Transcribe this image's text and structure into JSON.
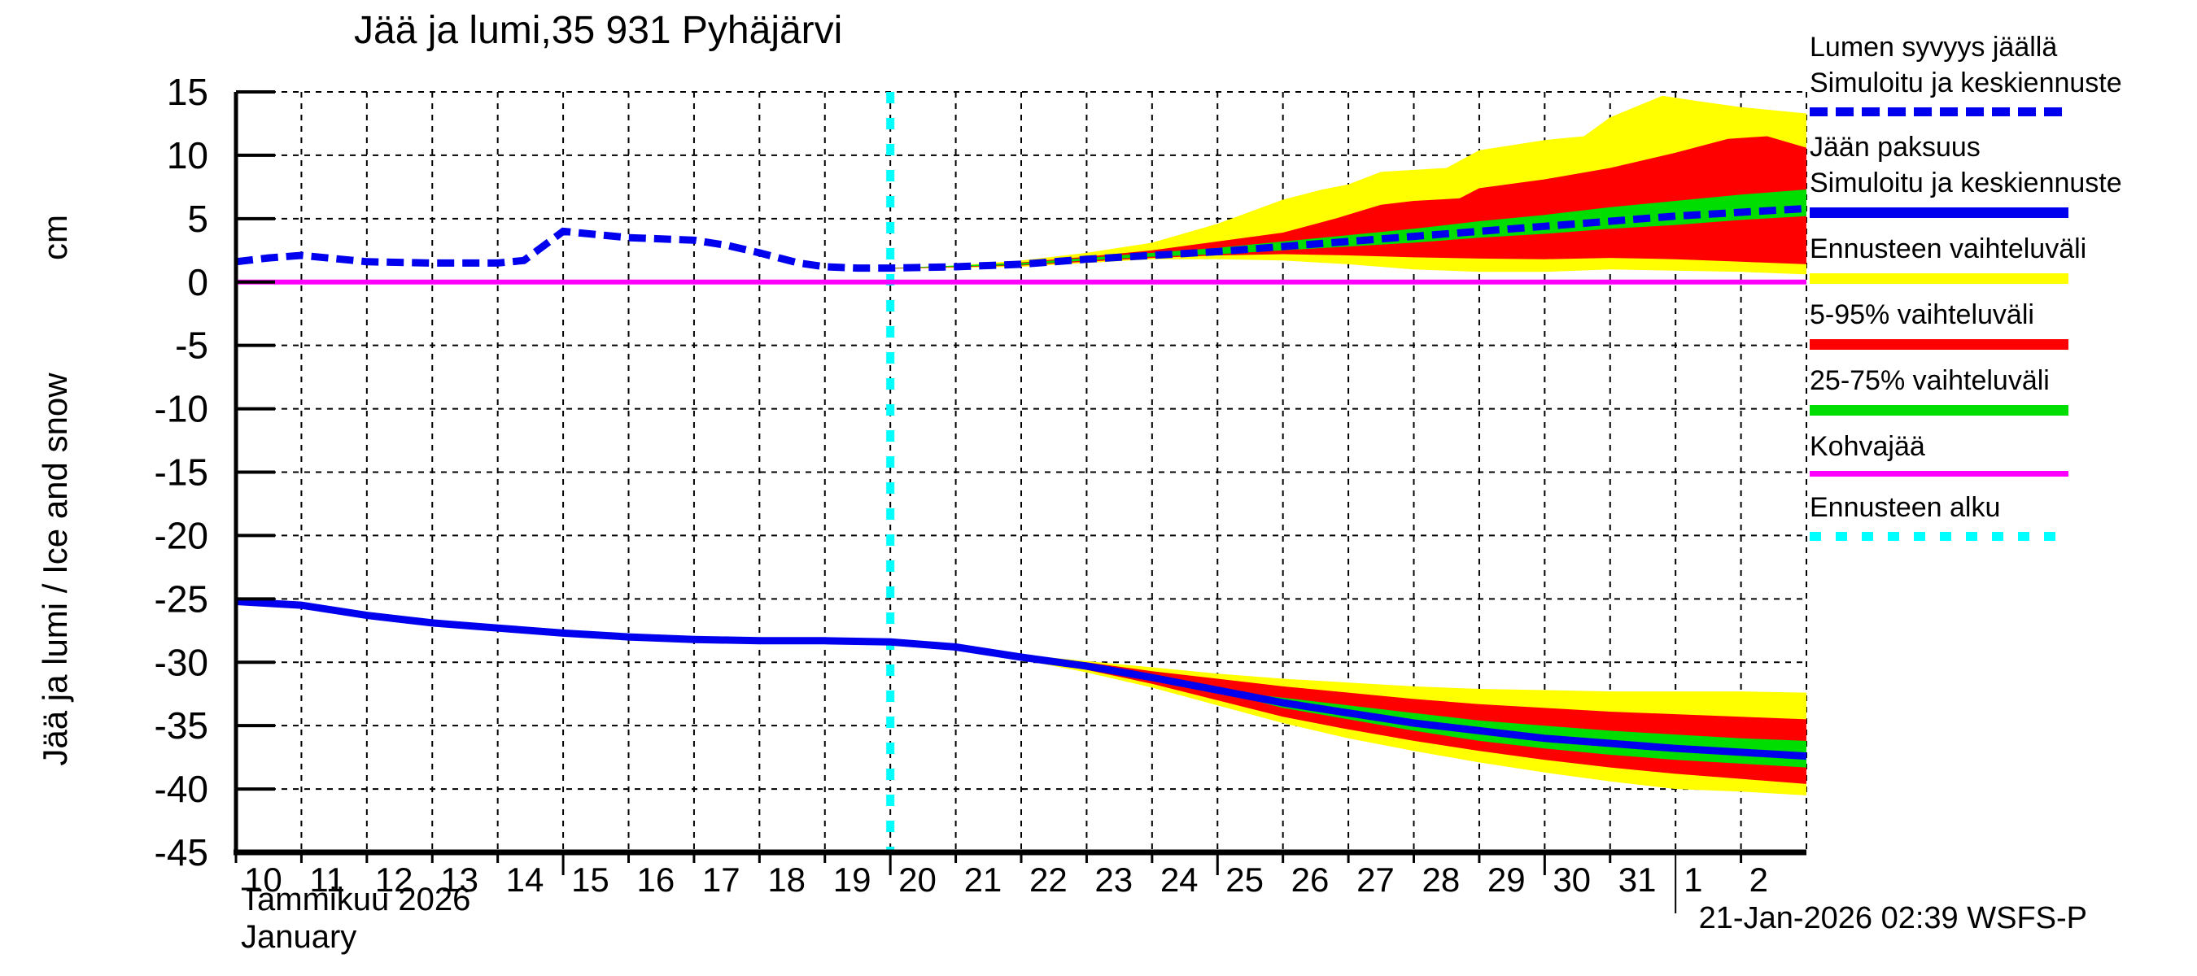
{
  "title": "Jää ja lumi,35 931 Pyhäjärvi",
  "timestamp": "21-Jan-2026 02:39 WSFS-P",
  "colors": {
    "median_blue": "#0000ee",
    "band_yellow": "#ffff00",
    "band_red": "#ff0000",
    "band_green": "#00dd00",
    "kohvajaa_magenta": "#ff00ff",
    "forecast_cyan": "#00ffff",
    "axis_black": "#000000"
  },
  "legend": {
    "items": [
      {
        "line1": "Lumen syvyys jäällä",
        "line2": "Simuloitu ja keskiennuste",
        "swatch": {
          "color": "#0000ee",
          "height": 11,
          "dash": "22 10"
        }
      },
      {
        "line1": "Jään paksuus",
        "line2": "Simuloitu ja keskiennuste",
        "swatch": {
          "color": "#0000ee",
          "height": 13,
          "dash": ""
        }
      },
      {
        "line1": "Ennusteen vaihteluväli",
        "line2": "",
        "swatch": {
          "color": "#ffff00",
          "height": 13,
          "dash": ""
        }
      },
      {
        "line1": "5-95% vaihteluväli",
        "line2": "",
        "swatch": {
          "color": "#ff0000",
          "height": 13,
          "dash": ""
        }
      },
      {
        "line1": "25-75% vaihteluväli",
        "line2": "",
        "swatch": {
          "color": "#00dd00",
          "height": 13,
          "dash": ""
        }
      },
      {
        "line1": "Kohvajää",
        "line2": "",
        "swatch": {
          "color": "#ff00ff",
          "height": 7,
          "dash": ""
        }
      },
      {
        "line1": "Ennusteen alku",
        "line2": "",
        "swatch": {
          "color": "#00ffff",
          "height": 11,
          "dash": "14 18"
        }
      }
    ]
  },
  "chart_data": {
    "type": "line",
    "title": "Jää ja lumi,35 931 Pyhäjärvi",
    "ylabel": "Jää ja lumi / Ice and snow",
    "yunit": "cm",
    "xlabel_fi": "Tammikuu 2026",
    "xlabel_en": "January",
    "ylim": [
      -45,
      15
    ],
    "yticks": [
      15,
      10,
      5,
      0,
      -5,
      -10,
      -15,
      -20,
      -25,
      -30,
      -35,
      -40,
      -45
    ],
    "xlim_days": [
      10,
      34
    ],
    "day_labels": [
      "10",
      "11",
      "12",
      "13",
      "14",
      "15",
      "16",
      "17",
      "18",
      "19",
      "20",
      "21",
      "22",
      "23",
      "24",
      "25",
      "26",
      "27",
      "28",
      "29",
      "30",
      "31",
      "1",
      "2"
    ],
    "five_day_tick_days": [
      15,
      20,
      25,
      30
    ],
    "month_boundary_day": 32,
    "forecast_start_day": 20,
    "grid": "dashed both axes, daily vertical, 5 cm horizontal",
    "legend_position": "outside right",
    "kohvajaa_level": 0,
    "series": {
      "snow_median_dashed": [
        [
          10,
          1.6
        ],
        [
          10.5,
          1.9
        ],
        [
          11,
          2.1
        ],
        [
          11.5,
          1.85
        ],
        [
          12,
          1.6
        ],
        [
          13,
          1.5
        ],
        [
          14,
          1.5
        ],
        [
          14.4,
          1.7
        ],
        [
          15,
          4.0
        ],
        [
          15.6,
          3.7
        ],
        [
          16,
          3.5
        ],
        [
          17,
          3.3
        ],
        [
          17.5,
          2.9
        ],
        [
          18,
          2.3
        ],
        [
          18.6,
          1.5
        ],
        [
          19,
          1.2
        ],
        [
          19.5,
          1.1
        ],
        [
          20,
          1.1
        ],
        [
          21,
          1.2
        ],
        [
          22,
          1.4
        ],
        [
          23,
          1.8
        ],
        [
          24,
          2.1
        ],
        [
          25,
          2.4
        ],
        [
          26,
          2.8
        ],
        [
          27,
          3.2
        ],
        [
          28,
          3.6
        ],
        [
          29,
          4.0
        ],
        [
          30,
          4.4
        ],
        [
          31,
          4.8
        ],
        [
          32,
          5.2
        ],
        [
          33,
          5.5
        ],
        [
          34,
          5.8
        ]
      ],
      "ice_median_solid": [
        [
          10,
          -25.2
        ],
        [
          11,
          -25.5
        ],
        [
          12,
          -26.3
        ],
        [
          13,
          -26.9
        ],
        [
          14,
          -27.3
        ],
        [
          15,
          -27.7
        ],
        [
          16,
          -28.0
        ],
        [
          17,
          -28.2
        ],
        [
          18,
          -28.3
        ],
        [
          19,
          -28.3
        ],
        [
          20,
          -28.4
        ],
        [
          21,
          -28.8
        ],
        [
          22,
          -29.6
        ],
        [
          23,
          -30.3
        ],
        [
          24,
          -31.2
        ],
        [
          25,
          -32.2
        ],
        [
          26,
          -33.2
        ],
        [
          27,
          -34.0
        ],
        [
          28,
          -34.8
        ],
        [
          29,
          -35.4
        ],
        [
          30,
          -36.0
        ],
        [
          31,
          -36.4
        ],
        [
          32,
          -36.8
        ],
        [
          33,
          -37.1
        ],
        [
          34,
          -37.4
        ]
      ],
      "snow_yellow_top": [
        [
          20,
          1.1
        ],
        [
          21,
          1.3
        ],
        [
          22,
          1.7
        ],
        [
          23,
          2.3
        ],
        [
          24,
          3.1
        ],
        [
          25,
          4.6
        ],
        [
          26,
          6.5
        ],
        [
          26.6,
          7.3
        ],
        [
          27,
          7.7
        ],
        [
          27.5,
          8.7
        ],
        [
          28.5,
          9.0
        ],
        [
          29,
          10.4
        ],
        [
          30,
          11.2
        ],
        [
          30.6,
          11.5
        ],
        [
          31,
          13.0
        ],
        [
          31.8,
          14.7
        ],
        [
          32.3,
          14.3
        ],
        [
          33,
          13.8
        ],
        [
          34,
          13.3
        ]
      ],
      "snow_yellow_bottom": [
        [
          20,
          1.05
        ],
        [
          22,
          1.2
        ],
        [
          23,
          1.5
        ],
        [
          24,
          1.8
        ],
        [
          25,
          1.8
        ],
        [
          26,
          1.7
        ],
        [
          27,
          1.4
        ],
        [
          28,
          1.0
        ],
        [
          29,
          0.8
        ],
        [
          30,
          0.8
        ],
        [
          31,
          1.0
        ],
        [
          32,
          0.9
        ],
        [
          33,
          0.8
        ],
        [
          34,
          0.6
        ]
      ],
      "snow_red_top": [
        [
          20,
          1.1
        ],
        [
          21,
          1.25
        ],
        [
          22,
          1.55
        ],
        [
          23,
          2.0
        ],
        [
          24,
          2.5
        ],
        [
          25,
          3.2
        ],
        [
          26,
          3.9
        ],
        [
          26.8,
          5.0
        ],
        [
          27.5,
          6.1
        ],
        [
          28,
          6.4
        ],
        [
          28.7,
          6.6
        ],
        [
          29,
          7.4
        ],
        [
          30,
          8.1
        ],
        [
          31,
          9.0
        ],
        [
          32,
          10.2
        ],
        [
          32.8,
          11.3
        ],
        [
          33.4,
          11.5
        ],
        [
          34,
          10.6
        ]
      ],
      "snow_red_bottom": [
        [
          20,
          1.05
        ],
        [
          22,
          1.3
        ],
        [
          23,
          1.6
        ],
        [
          24,
          1.9
        ],
        [
          25,
          2.1
        ],
        [
          26,
          2.2
        ],
        [
          27,
          2.1
        ],
        [
          28,
          1.95
        ],
        [
          29,
          1.85
        ],
        [
          30,
          1.8
        ],
        [
          31,
          1.9
        ],
        [
          32,
          1.8
        ],
        [
          33,
          1.6
        ],
        [
          34,
          1.4
        ]
      ],
      "snow_green_top": [
        [
          20,
          1.1
        ],
        [
          22,
          1.5
        ],
        [
          23,
          1.9
        ],
        [
          24,
          2.3
        ],
        [
          25,
          2.7
        ],
        [
          26,
          3.2
        ],
        [
          27,
          3.7
        ],
        [
          28,
          4.2
        ],
        [
          29,
          4.8
        ],
        [
          30,
          5.3
        ],
        [
          31,
          5.9
        ],
        [
          32,
          6.4
        ],
        [
          33,
          6.9
        ],
        [
          34,
          7.3
        ]
      ],
      "snow_green_bottom": [
        [
          20,
          1.08
        ],
        [
          22,
          1.35
        ],
        [
          23,
          1.7
        ],
        [
          24,
          2.0
        ],
        [
          25,
          2.2
        ],
        [
          26,
          2.5
        ],
        [
          27,
          2.8
        ],
        [
          28,
          3.1
        ],
        [
          29,
          3.5
        ],
        [
          30,
          3.8
        ],
        [
          31,
          4.2
        ],
        [
          32,
          4.5
        ],
        [
          33,
          4.9
        ],
        [
          34,
          5.2
        ]
      ],
      "ice_yellow_top": [
        [
          20,
          -28.4
        ],
        [
          21,
          -28.8
        ],
        [
          22,
          -29.4
        ],
        [
          23,
          -29.9
        ],
        [
          24,
          -30.4
        ],
        [
          25,
          -30.9
        ],
        [
          26,
          -31.3
        ],
        [
          27,
          -31.6
        ],
        [
          28,
          -31.9
        ],
        [
          29,
          -32.1
        ],
        [
          30,
          -32.2
        ],
        [
          31,
          -32.3
        ],
        [
          32,
          -32.3
        ],
        [
          33,
          -32.3
        ],
        [
          34,
          -32.4
        ]
      ],
      "ice_yellow_bottom": [
        [
          20,
          -28.4
        ],
        [
          21,
          -28.9
        ],
        [
          22,
          -29.8
        ],
        [
          23,
          -30.8
        ],
        [
          24,
          -32.0
        ],
        [
          25,
          -33.4
        ],
        [
          26,
          -34.8
        ],
        [
          27,
          -36.0
        ],
        [
          28,
          -37.0
        ],
        [
          29,
          -37.9
        ],
        [
          30,
          -38.7
        ],
        [
          31,
          -39.4
        ],
        [
          32,
          -40.0
        ],
        [
          33,
          -40.2
        ],
        [
          34,
          -40.5
        ]
      ],
      "ice_red_top": [
        [
          20,
          -28.4
        ],
        [
          21,
          -28.8
        ],
        [
          22,
          -29.5
        ],
        [
          23,
          -30.0
        ],
        [
          24,
          -30.7
        ],
        [
          25,
          -31.3
        ],
        [
          26,
          -31.9
        ],
        [
          27,
          -32.4
        ],
        [
          28,
          -32.9
        ],
        [
          29,
          -33.3
        ],
        [
          30,
          -33.6
        ],
        [
          31,
          -33.9
        ],
        [
          32,
          -34.1
        ],
        [
          33,
          -34.3
        ],
        [
          34,
          -34.5
        ]
      ],
      "ice_red_bottom": [
        [
          20,
          -28.4
        ],
        [
          21,
          -28.9
        ],
        [
          22,
          -29.7
        ],
        [
          23,
          -30.6
        ],
        [
          24,
          -31.7
        ],
        [
          25,
          -33.0
        ],
        [
          26,
          -34.3
        ],
        [
          27,
          -35.3
        ],
        [
          28,
          -36.2
        ],
        [
          29,
          -37.0
        ],
        [
          30,
          -37.7
        ],
        [
          31,
          -38.3
        ],
        [
          32,
          -38.8
        ],
        [
          33,
          -39.2
        ],
        [
          34,
          -39.6
        ]
      ],
      "ice_green_top": [
        [
          25,
          -32.2
        ],
        [
          26,
          -32.8
        ],
        [
          27,
          -33.4
        ],
        [
          28,
          -34.0
        ],
        [
          29,
          -34.6
        ],
        [
          30,
          -35.0
        ],
        [
          31,
          -35.4
        ],
        [
          32,
          -35.7
        ],
        [
          33,
          -36.0
        ],
        [
          34,
          -36.2
        ]
      ],
      "ice_green_bottom": [
        [
          25,
          -32.3
        ],
        [
          26,
          -33.6
        ],
        [
          27,
          -34.5
        ],
        [
          28,
          -35.4
        ],
        [
          29,
          -36.2
        ],
        [
          30,
          -36.8
        ],
        [
          31,
          -37.3
        ],
        [
          32,
          -37.7
        ],
        [
          33,
          -38.0
        ],
        [
          34,
          -38.3
        ]
      ]
    }
  }
}
